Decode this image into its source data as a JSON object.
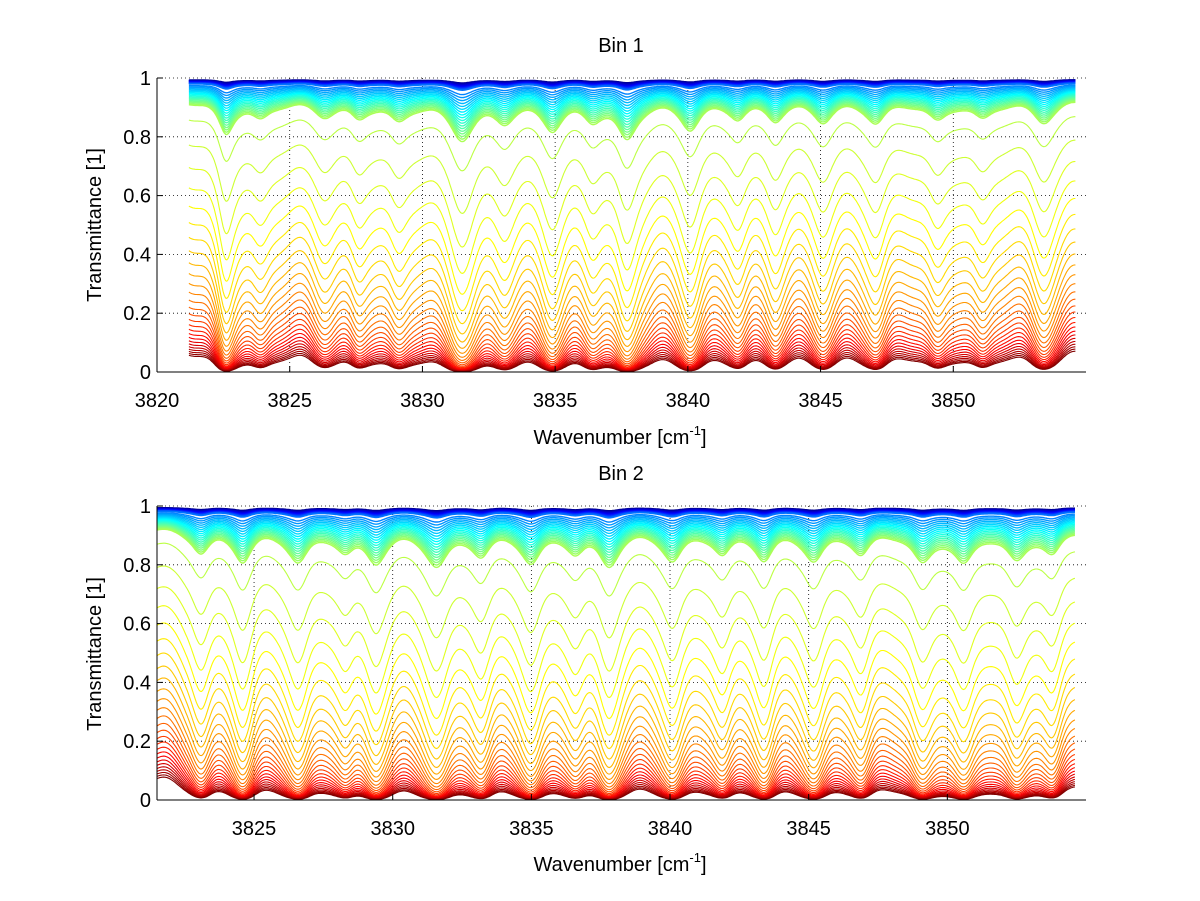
{
  "chart_data": [
    {
      "type": "line",
      "title": "Bin 1",
      "xlabel": "Wavenumber [cm",
      "xlabel_superscript": "-1",
      "xlabel_suffix": "]",
      "ylabel": "Transmittance [1]",
      "xlim": [
        3820,
        3855
      ],
      "ylim": [
        0,
        1
      ],
      "x_ticks": [
        3820,
        3825,
        3830,
        3835,
        3840,
        3845,
        3850
      ],
      "y_ticks": [
        0,
        0.2,
        0.4,
        0.6,
        0.8,
        1
      ],
      "y_tick_labels": [
        "0",
        "0.2",
        "0.4",
        "0.6",
        "0.8",
        "1"
      ],
      "grid": true,
      "data_x_range": [
        3821.2,
        3854.6
      ],
      "absorption_lines": [
        {
          "x": 3822.6,
          "w": 0.35,
          "depth": 0.85
        },
        {
          "x": 3823.9,
          "w": 0.45,
          "depth": 0.45
        },
        {
          "x": 3826.3,
          "w": 0.5,
          "depth": 0.35
        },
        {
          "x": 3827.6,
          "w": 0.4,
          "depth": 0.4
        },
        {
          "x": 3829.1,
          "w": 0.45,
          "depth": 0.5
        },
        {
          "x": 3831.5,
          "w": 0.55,
          "depth": 1.0
        },
        {
          "x": 3833.1,
          "w": 0.45,
          "depth": 0.45
        },
        {
          "x": 3834.9,
          "w": 0.45,
          "depth": 0.7
        },
        {
          "x": 3836.4,
          "w": 0.4,
          "depth": 0.4
        },
        {
          "x": 3837.7,
          "w": 0.45,
          "depth": 1.0
        },
        {
          "x": 3840.1,
          "w": 0.45,
          "depth": 0.7
        },
        {
          "x": 3841.9,
          "w": 0.4,
          "depth": 0.4
        },
        {
          "x": 3843.3,
          "w": 0.4,
          "depth": 0.45
        },
        {
          "x": 3845.1,
          "w": 0.45,
          "depth": 0.5
        },
        {
          "x": 3847.1,
          "w": 0.45,
          "depth": 0.55
        },
        {
          "x": 3849.4,
          "w": 0.45,
          "depth": 0.5
        },
        {
          "x": 3851.1,
          "w": 0.45,
          "depth": 0.45
        },
        {
          "x": 3853.4,
          "w": 0.5,
          "depth": 0.55
        }
      ],
      "series_count": 60,
      "colormap": [
        "#00008f",
        "#0000ff",
        "#0080ff",
        "#00ffff",
        "#80ff80",
        "#ffff00",
        "#ff8000",
        "#ff0000",
        "#800000"
      ]
    },
    {
      "type": "line",
      "title": "Bin 2",
      "xlabel": "Wavenumber [cm",
      "xlabel_superscript": "-1",
      "xlabel_suffix": "]",
      "ylabel": "Transmittance [1]",
      "xlim": [
        3821.5,
        3855
      ],
      "ylim": [
        0,
        1
      ],
      "x_ticks": [
        3825,
        3830,
        3835,
        3840,
        3845,
        3850
      ],
      "y_ticks": [
        0,
        0.2,
        0.4,
        0.6,
        0.8,
        1
      ],
      "y_tick_labels": [
        "0",
        "0.2",
        "0.4",
        "0.6",
        "0.8",
        "1"
      ],
      "grid": true,
      "data_x_range": [
        3821.5,
        3854.6
      ],
      "absorption_lines": [
        {
          "x": 3823.1,
          "w": 0.4,
          "depth": 0.6
        },
        {
          "x": 3824.6,
          "w": 0.4,
          "depth": 0.8
        },
        {
          "x": 3826.6,
          "w": 0.45,
          "depth": 0.85
        },
        {
          "x": 3828.3,
          "w": 0.4,
          "depth": 0.5
        },
        {
          "x": 3829.4,
          "w": 0.45,
          "depth": 0.8
        },
        {
          "x": 3831.6,
          "w": 0.5,
          "depth": 0.95
        },
        {
          "x": 3833.2,
          "w": 0.4,
          "depth": 0.6
        },
        {
          "x": 3835.0,
          "w": 0.45,
          "depth": 0.85
        },
        {
          "x": 3836.6,
          "w": 0.4,
          "depth": 0.5
        },
        {
          "x": 3837.8,
          "w": 0.45,
          "depth": 0.9
        },
        {
          "x": 3840.1,
          "w": 0.45,
          "depth": 0.8
        },
        {
          "x": 3841.9,
          "w": 0.4,
          "depth": 0.6
        },
        {
          "x": 3843.4,
          "w": 0.4,
          "depth": 0.75
        },
        {
          "x": 3845.2,
          "w": 0.45,
          "depth": 0.8
        },
        {
          "x": 3846.9,
          "w": 0.4,
          "depth": 0.6
        },
        {
          "x": 3849.1,
          "w": 0.45,
          "depth": 0.85
        },
        {
          "x": 3850.6,
          "w": 0.45,
          "depth": 0.85
        },
        {
          "x": 3852.5,
          "w": 0.45,
          "depth": 0.8
        },
        {
          "x": 3853.8,
          "w": 0.4,
          "depth": 0.6
        }
      ],
      "series_count": 60,
      "colormap": [
        "#00008f",
        "#0000ff",
        "#0080ff",
        "#00ffff",
        "#80ff80",
        "#ffff00",
        "#ff8000",
        "#ff0000",
        "#800000"
      ]
    }
  ]
}
